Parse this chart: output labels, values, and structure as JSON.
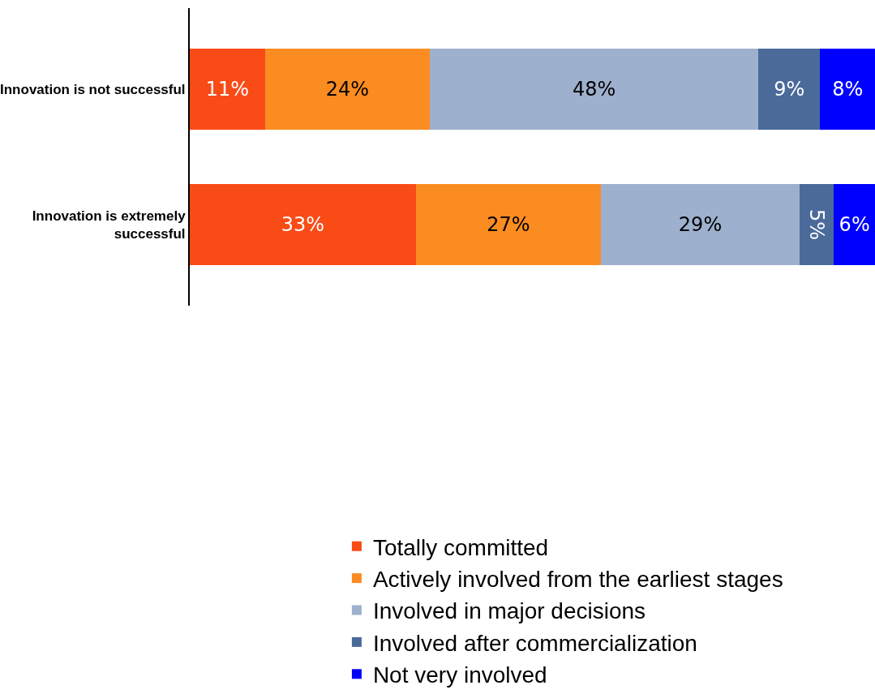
{
  "chart_data": {
    "type": "bar",
    "orientation": "horizontal",
    "stacked": true,
    "categories": [
      "Innovation is not successful",
      "Innovation is extremely successful"
    ],
    "xlim": [
      0,
      100
    ],
    "tick_labels": "y",
    "legend": "bottom",
    "series": [
      {
        "name": "Totally committed",
        "color": "#f94b16",
        "values": [
          11,
          33
        ],
        "value_labels": [
          "11%",
          "33%"
        ]
      },
      {
        "name": "Actively involved from the earliest stages",
        "color": "#fb8c22",
        "values": [
          24,
          27
        ],
        "value_labels": [
          "24%",
          "27%"
        ]
      },
      {
        "name": "Involved in major decisions",
        "color": "#9db0cd",
        "values": [
          48,
          29
        ],
        "value_labels": [
          "48%",
          "29%"
        ]
      },
      {
        "name": "Involved after commercialization",
        "color": "#4a6a9a",
        "values": [
          9,
          5
        ],
        "value_labels": [
          "9%",
          "5%"
        ]
      },
      {
        "name": "Not very involved",
        "color": "#0000fe",
        "values": [
          8,
          6
        ],
        "value_labels": [
          "8%",
          "6%"
        ]
      }
    ]
  }
}
